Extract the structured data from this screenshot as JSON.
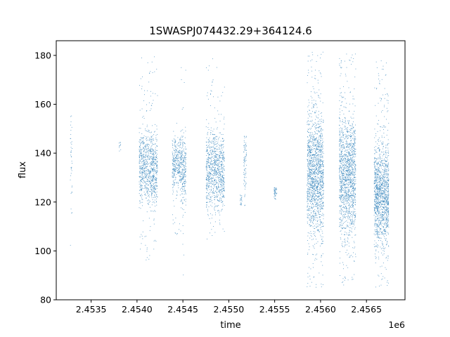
{
  "chart_data": {
    "type": "scatter",
    "title": "1SWASPJ074432.29+364124.6",
    "xlabel": "time",
    "ylabel": "flux",
    "x_offset_label": "1e6",
    "xlim": [
      2453120,
      2456920
    ],
    "ylim": [
      80,
      186
    ],
    "xticks": [
      2453500,
      2454000,
      2454500,
      2455000,
      2455500,
      2456000,
      2456500
    ],
    "xtick_labels": [
      "2.4535",
      "2.4540",
      "2.4545",
      "2.4550",
      "2.4555",
      "2.4560",
      "2.4565"
    ],
    "yticks": [
      80,
      100,
      120,
      140,
      160,
      180
    ],
    "ytick_labels": [
      "80",
      "100",
      "120",
      "140",
      "160",
      "180"
    ],
    "grid": false,
    "marker_color": "#1f77b4",
    "clusters": [
      {
        "x_start": 2453270,
        "x_end": 2453290,
        "y_center": 135,
        "y_spread": 12,
        "outlier_low": 95,
        "outlier_high": 180,
        "points": 40
      },
      {
        "x_start": 2453800,
        "x_end": 2453820,
        "y_center": 143,
        "y_spread": 1.5,
        "outlier_low": 141,
        "outlier_high": 145,
        "points": 10
      },
      {
        "x_start": 2454020,
        "x_end": 2454220,
        "y_center": 134,
        "y_spread": 7,
        "outlier_low": 96,
        "outlier_high": 180,
        "points": 900
      },
      {
        "x_start": 2454380,
        "x_end": 2454470,
        "y_center": 136,
        "y_spread": 5,
        "outlier_low": 105,
        "outlier_high": 153,
        "points": 300
      },
      {
        "x_start": 2454470,
        "x_end": 2454530,
        "y_center": 133,
        "y_spread": 7,
        "outlier_low": 85,
        "outlier_high": 178,
        "points": 260
      },
      {
        "x_start": 2454750,
        "x_end": 2454950,
        "y_center": 133,
        "y_spread": 8,
        "outlier_low": 105,
        "outlier_high": 180,
        "points": 900
      },
      {
        "x_start": 2455120,
        "x_end": 2455140,
        "y_center": 121,
        "y_spread": 1.5,
        "outlier_low": 119,
        "outlier_high": 123,
        "points": 20
      },
      {
        "x_start": 2455160,
        "x_end": 2455190,
        "y_center": 136,
        "y_spread": 6,
        "outlier_low": 118,
        "outlier_high": 147,
        "points": 80
      },
      {
        "x_start": 2455490,
        "x_end": 2455520,
        "y_center": 124,
        "y_spread": 1.2,
        "outlier_low": 121,
        "outlier_high": 126,
        "points": 40
      },
      {
        "x_start": 2455850,
        "x_end": 2456030,
        "y_center": 132,
        "y_spread": 12,
        "outlier_low": 85,
        "outlier_high": 182,
        "points": 1500
      },
      {
        "x_start": 2456200,
        "x_end": 2456380,
        "y_center": 131,
        "y_spread": 12,
        "outlier_low": 86,
        "outlier_high": 181,
        "points": 1400
      },
      {
        "x_start": 2456580,
        "x_end": 2456740,
        "y_center": 124,
        "y_spread": 10,
        "outlier_low": 85,
        "outlier_high": 178,
        "points": 1300
      }
    ]
  }
}
